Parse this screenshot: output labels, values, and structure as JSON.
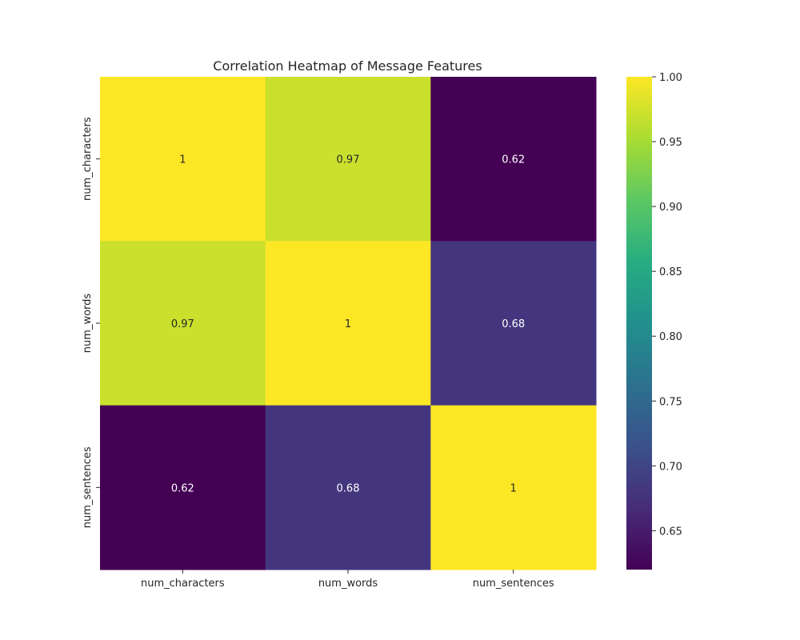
{
  "chart_data": {
    "type": "heatmap",
    "title": "Correlation Heatmap of Message Features",
    "xlabel": "",
    "ylabel": "",
    "x_categories": [
      "num_characters",
      "num_words",
      "num_sentences"
    ],
    "y_categories": [
      "num_characters",
      "num_words",
      "num_sentences"
    ],
    "values": [
      [
        1.0,
        0.97,
        0.62
      ],
      [
        0.97,
        1.0,
        0.68
      ],
      [
        0.62,
        0.68,
        1.0
      ]
    ],
    "annotations": [
      [
        "1",
        "0.97",
        "0.62"
      ],
      [
        "0.97",
        "1",
        "0.68"
      ],
      [
        "0.62",
        "0.68",
        "1"
      ]
    ],
    "colormap": "viridis",
    "colorbar": {
      "range": [
        0.62,
        1.0
      ],
      "ticks": [
        0.65,
        0.7,
        0.75,
        0.8,
        0.85,
        0.9,
        0.95,
        1.0
      ],
      "tick_labels": [
        "0.65",
        "0.70",
        "0.75",
        "0.80",
        "0.85",
        "0.90",
        "0.95",
        "1.00"
      ]
    },
    "grid": false,
    "legend": "colorbar-right"
  }
}
